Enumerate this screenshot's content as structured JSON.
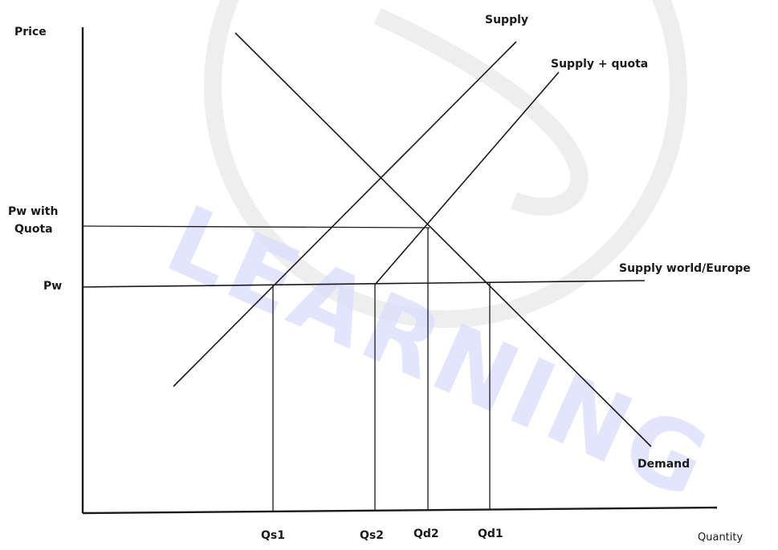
{
  "watermark": {
    "text": "LEARNING"
  },
  "axes": {
    "y_label": "Price",
    "x_label": "Quantity"
  },
  "price_levels": {
    "pw_quota_line1": "Pw with",
    "pw_quota_line2": "Quota",
    "pw": "Pw"
  },
  "quantity_labels": {
    "qs1": "Qs1",
    "qs2": "Qs2",
    "qd2": "Qd2",
    "qd1": "Qd1"
  },
  "curves": {
    "supply": "Supply",
    "supply_quota": "Supply + quota",
    "world_supply": "Supply world/Europe",
    "demand": "Demand"
  }
}
